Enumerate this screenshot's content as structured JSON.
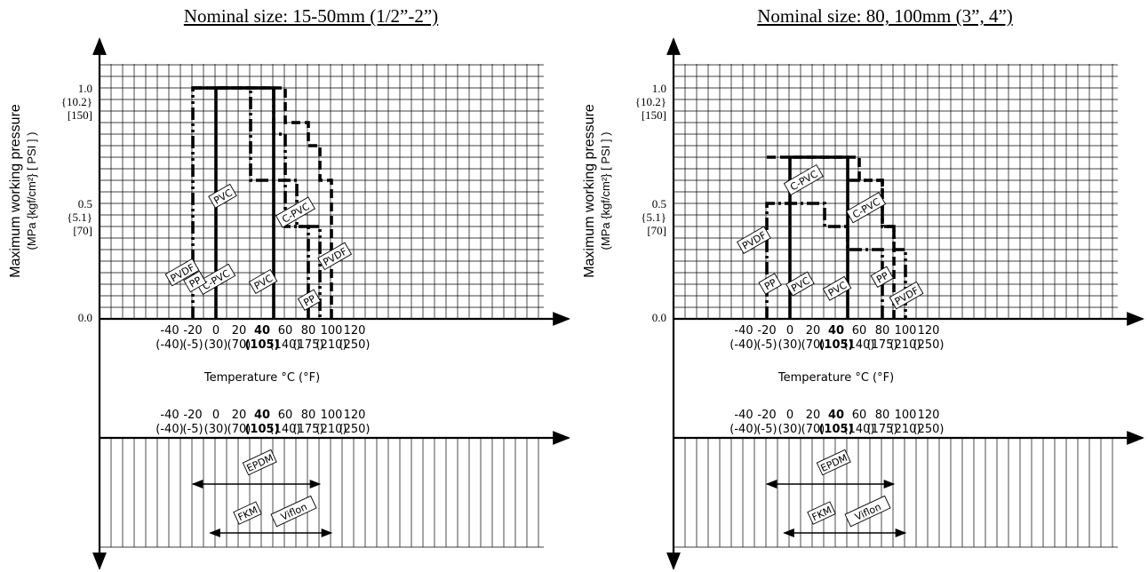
{
  "chart_data": [
    {
      "type": "line",
      "title": "Nominal size: 15-50mm (1/2”-2”)",
      "ylabel": "Maximum working pressure",
      "ylabel_units": "(MPa {kgf/cm²} [ PSI ] )",
      "xlabel": "Temperature °C (°F)",
      "x_ticks": [
        "-40",
        "-20",
        "0",
        "20",
        "40",
        "60",
        "80",
        "100",
        "120"
      ],
      "x_ticks_f": [
        "(-40)",
        "(-5)",
        "(30)",
        "(70)",
        "(105)",
        "(140)",
        "(175)",
        "(210)",
        "(250)"
      ],
      "y_ticks": [
        {
          "value": 1.0,
          "lines": [
            "1.0",
            "{10.2}",
            "[150]"
          ]
        },
        {
          "value": 0.5,
          "lines": [
            "0.5",
            "{5.1}",
            "[70]"
          ]
        },
        {
          "value": 0.0,
          "lines": [
            "0.0"
          ]
        }
      ],
      "xlim": [
        -50,
        145
      ],
      "ylim": [
        0,
        1.1
      ],
      "series": [
        {
          "name": "PVC",
          "style": "solid",
          "points": [
            [
              0,
              0
            ],
            [
              0,
              1.0
            ],
            [
              50,
              1.0
            ],
            [
              50,
              0
            ]
          ]
        },
        {
          "name": "C-PVC",
          "style": "dashdot",
          "points": [
            [
              -20,
              1.0
            ],
            [
              30,
              1.0
            ],
            [
              30,
              0.6
            ],
            [
              70,
              0.6
            ],
            [
              70,
              0.4
            ],
            [
              80,
              0.4
            ],
            [
              80,
              0
            ]
          ]
        },
        {
          "name": "PP",
          "style": "dashdotdot",
          "points": [
            [
              -20,
              0
            ],
            [
              -20,
              1.0
            ],
            [
              50,
              1.0
            ],
            [
              50,
              0.8
            ],
            [
              60,
              0.8
            ],
            [
              60,
              0.4
            ],
            [
              90,
              0.4
            ],
            [
              90,
              0
            ]
          ]
        },
        {
          "name": "PVDF",
          "style": "dashed",
          "points": [
            [
              -20,
              1.0
            ],
            [
              60,
              1.0
            ],
            [
              60,
              0.85
            ],
            [
              80,
              0.85
            ],
            [
              80,
              0.75
            ],
            [
              90,
              0.75
            ],
            [
              90,
              0.6
            ],
            [
              100,
              0.6
            ],
            [
              100,
              0
            ]
          ]
        }
      ],
      "series_labels": [
        {
          "text": "PVC",
          "x": 6,
          "y": 0.53
        },
        {
          "text": "PVC",
          "x": 41,
          "y": 0.16
        },
        {
          "text": "C-PVC",
          "x": 0,
          "y": 0.17
        },
        {
          "text": "C-PVC",
          "x": 69,
          "y": 0.46
        },
        {
          "text": "PP",
          "x": -18,
          "y": 0.16
        },
        {
          "text": "PP",
          "x": 81,
          "y": 0.08
        },
        {
          "text": "PVDF",
          "x": -29,
          "y": 0.2
        },
        {
          "text": "PVDF",
          "x": 103,
          "y": 0.27
        }
      ],
      "seals": {
        "x_ticks": [
          "-40",
          "-20",
          "0",
          "20",
          "40",
          "60",
          "80",
          "100",
          "120"
        ],
        "x_ticks_f": [
          "(-40)",
          "(-5)",
          "(30)",
          "(70)",
          "(105)",
          "(140)",
          "(175)",
          "(210)",
          "(250)"
        ],
        "ranges": [
          {
            "labels": [
              "EPDM"
            ],
            "from": -20,
            "to": 90
          },
          {
            "labels": [
              "FKM",
              "Viflon"
            ],
            "from": -5,
            "to": 100
          }
        ]
      }
    },
    {
      "type": "line",
      "title": "Nominal size: 80, 100mm (3”, 4”)",
      "ylabel": "Maximum working pressure",
      "ylabel_units": "(MPa {kgf/cm²} [ PSI ] )",
      "xlabel": "Temperature °C (°F)",
      "x_ticks": [
        "-40",
        "-20",
        "0",
        "20",
        "40",
        "60",
        "80",
        "100",
        "120"
      ],
      "x_ticks_f": [
        "(-40)",
        "(-5)",
        "(30)",
        "(70)",
        "(105)",
        "(140)",
        "(175)",
        "(210)",
        "(250)"
      ],
      "y_ticks": [
        {
          "value": 1.0,
          "lines": [
            "1.0",
            "{10.2}",
            "[150]"
          ]
        },
        {
          "value": 0.5,
          "lines": [
            "0.5",
            "{5.1}",
            "[70]"
          ]
        },
        {
          "value": 0.0,
          "lines": [
            "0.0"
          ]
        }
      ],
      "xlim": [
        -50,
        145
      ],
      "ylim": [
        0,
        1.1
      ],
      "series": [
        {
          "name": "PVC",
          "style": "solid",
          "points": [
            [
              0,
              0
            ],
            [
              0,
              0.7
            ],
            [
              50,
              0.7
            ],
            [
              50,
              0
            ]
          ]
        },
        {
          "name": "C-PVC",
          "style": "dashed",
          "points": [
            [
              -20,
              0.7
            ],
            [
              60,
              0.7
            ],
            [
              60,
              0.6
            ],
            [
              80,
              0.6
            ],
            [
              80,
              0.4
            ],
            [
              90,
              0.4
            ],
            [
              90,
              0
            ]
          ]
        },
        {
          "name": "PP",
          "style": "dashdot",
          "points": [
            [
              -20,
              0
            ],
            [
              -20,
              0.5
            ],
            [
              30,
              0.5
            ],
            [
              30,
              0.4
            ],
            [
              50,
              0.4
            ],
            [
              50,
              0.3
            ],
            [
              80,
              0.3
            ],
            [
              80,
              0
            ]
          ]
        },
        {
          "name": "PVDF",
          "style": "dashdotdot",
          "points": [
            [
              50,
              0.6
            ],
            [
              80,
              0.6
            ],
            [
              80,
              0.4
            ],
            [
              90,
              0.4
            ],
            [
              90,
              0.3
            ],
            [
              100,
              0.3
            ],
            [
              100,
              0
            ]
          ]
        }
      ],
      "series_labels": [
        {
          "text": "C-PVC",
          "x": 12,
          "y": 0.6
        },
        {
          "text": "C-PVC",
          "x": 66,
          "y": 0.48
        },
        {
          "text": "PVDF",
          "x": -31,
          "y": 0.34
        },
        {
          "text": "PVDF",
          "x": 101,
          "y": 0.1
        },
        {
          "text": "PP",
          "x": -17,
          "y": 0.15
        },
        {
          "text": "PP",
          "x": 80,
          "y": 0.18
        },
        {
          "text": "PVC",
          "x": 9,
          "y": 0.15
        },
        {
          "text": "PVC",
          "x": 41,
          "y": 0.13
        }
      ],
      "seals": {
        "x_ticks": [
          "-40",
          "-20",
          "0",
          "20",
          "40",
          "60",
          "80",
          "100",
          "120"
        ],
        "x_ticks_f": [
          "(-40)",
          "(-5)",
          "(30)",
          "(70)",
          "(105)",
          "(140)",
          "(175)",
          "(210)",
          "(250)"
        ],
        "ranges": [
          {
            "labels": [
              "EPDM"
            ],
            "from": -20,
            "to": 90
          },
          {
            "labels": [
              "FKM",
              "Viflon"
            ],
            "from": -5,
            "to": 100
          }
        ]
      }
    }
  ]
}
